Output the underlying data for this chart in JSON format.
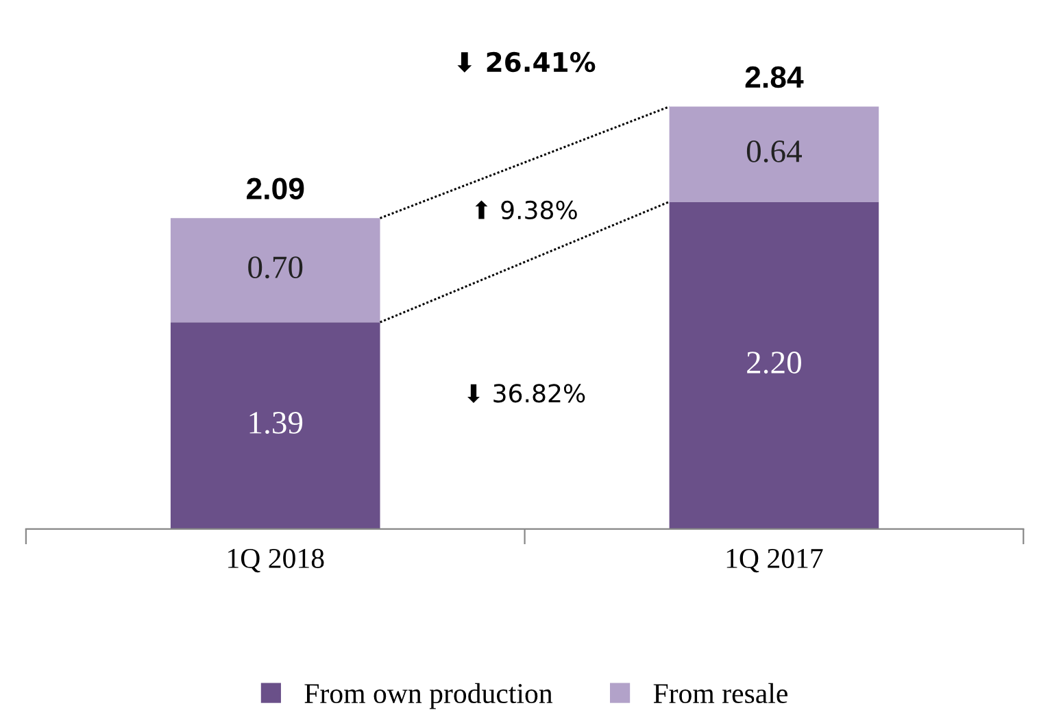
{
  "chart_data": {
    "type": "bar",
    "stacked": true,
    "categories": [
      "1Q 2018",
      "1Q 2017"
    ],
    "series": [
      {
        "name": "From own production",
        "color": "#6a5089",
        "values": [
          1.39,
          2.2
        ],
        "value_labels": [
          "1.39",
          "2.20"
        ]
      },
      {
        "name": "From resale",
        "color": "#b2a2c9",
        "values": [
          0.7,
          0.64
        ],
        "value_labels": [
          "0.70",
          "0.64"
        ]
      }
    ],
    "totals": [
      "2.09",
      "2.84"
    ],
    "annotations": [
      "⬇ 26.41%",
      "⬆ 9.38%",
      "⬇ 36.82%"
    ],
    "legend": "bottom",
    "grid": false
  }
}
